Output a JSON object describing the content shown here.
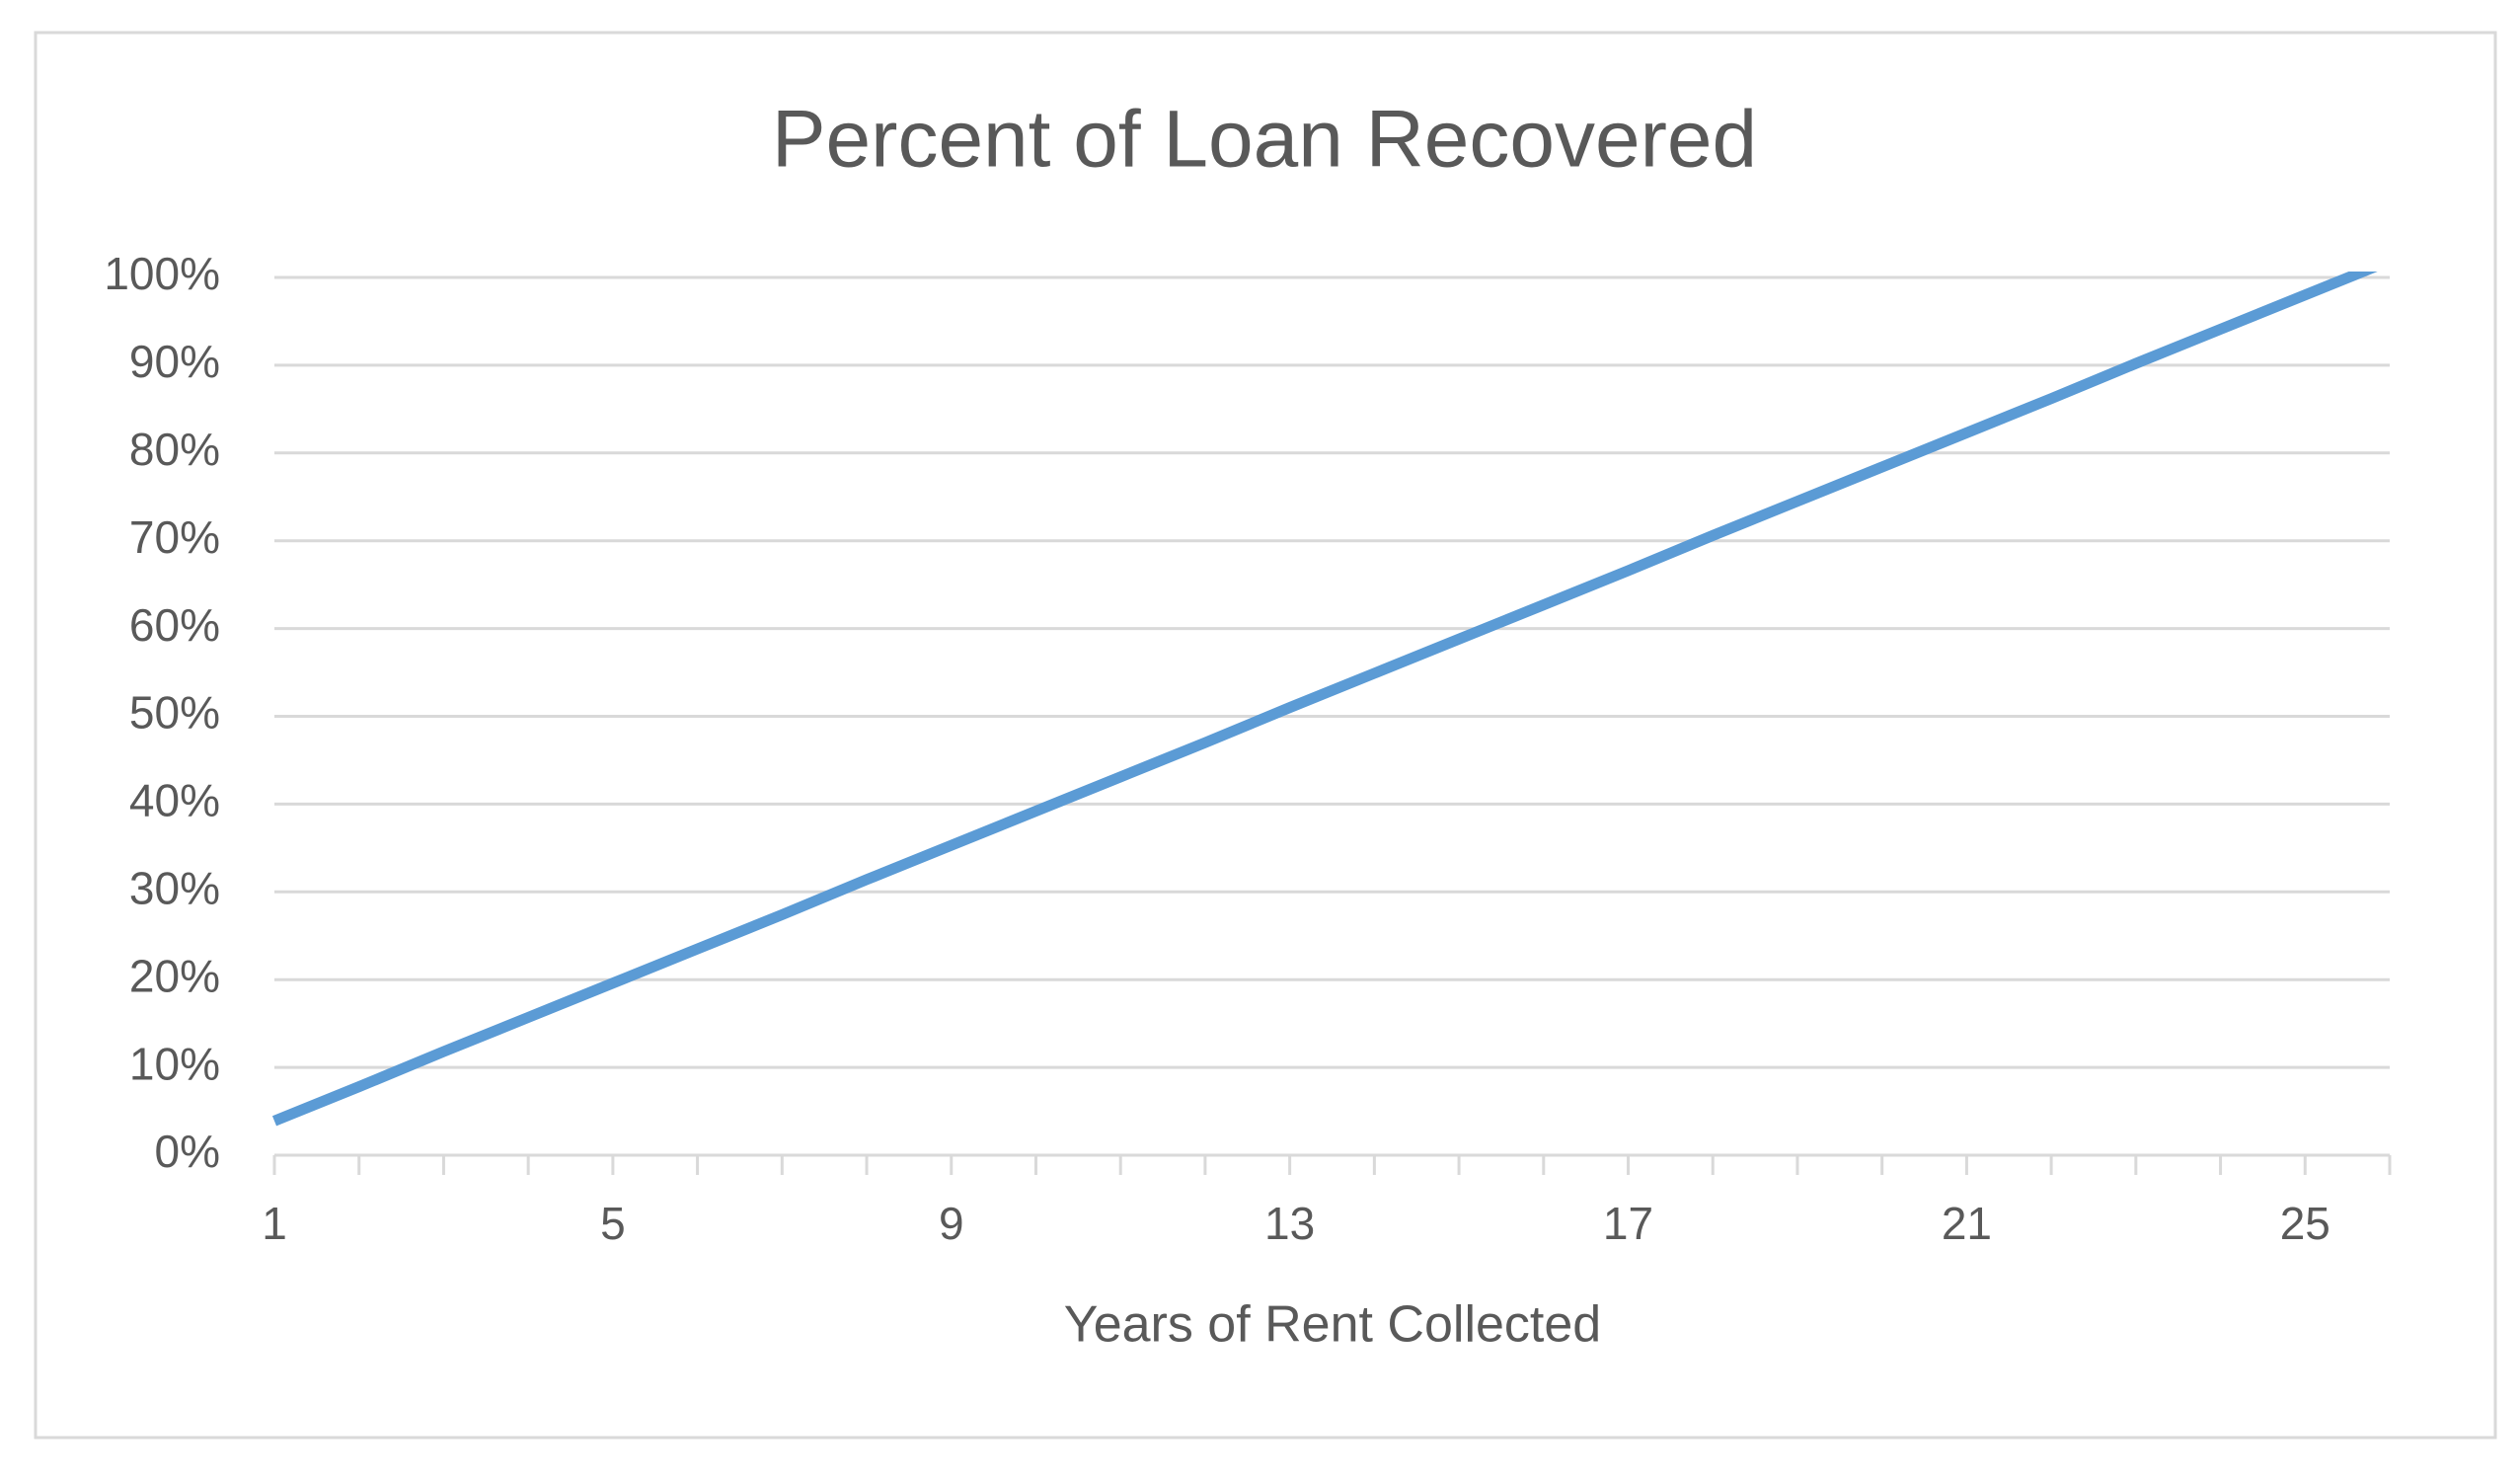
{
  "chart_data": {
    "type": "line",
    "title": "Percent of Loan Recovered",
    "x_label": "Years of Rent Collected",
    "categories": [
      "1",
      null,
      null,
      null,
      "5",
      null,
      null,
      null,
      "9",
      null,
      null,
      null,
      "13",
      null,
      null,
      null,
      "17",
      null,
      null,
      null,
      "21",
      null,
      null,
      null,
      "25",
      null
    ],
    "series": [
      {
        "name": "Percent of Loan Recovered",
        "color": "#5b9bd5",
        "values": [
          3.9,
          7.8,
          11.8,
          15.7,
          19.6,
          23.5,
          27.4,
          31.4,
          35.3,
          39.2,
          43.1,
          47.0,
          51.0,
          54.9,
          58.8,
          62.7,
          66.6,
          70.6,
          74.5,
          78.4,
          82.3,
          86.2,
          90.2,
          94.1,
          98.0,
          101.9
        ]
      }
    ],
    "ylim": [
      0,
      100
    ],
    "yticks": [
      {
        "value": 0,
        "label": "0%"
      },
      {
        "value": 10,
        "label": "10%"
      },
      {
        "value": 20,
        "label": "20%"
      },
      {
        "value": 30,
        "label": "30%"
      },
      {
        "value": 40,
        "label": "40%"
      },
      {
        "value": 50,
        "label": "50%"
      },
      {
        "value": 60,
        "label": "60%"
      },
      {
        "value": 70,
        "label": "70%"
      },
      {
        "value": 80,
        "label": "80%"
      },
      {
        "value": 90,
        "label": "90%"
      },
      {
        "value": 100,
        "label": "100%"
      }
    ],
    "grid": true,
    "legend": false
  }
}
